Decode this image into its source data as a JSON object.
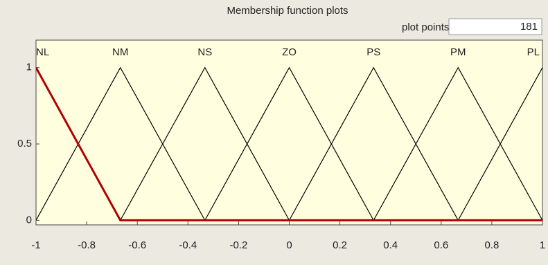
{
  "plot_points": {
    "label": "plot points:",
    "value": 181
  },
  "chart_data": {
    "type": "line",
    "title": "Membership function plots",
    "xlim": [
      -1,
      1
    ],
    "ylim": [
      -0.03,
      1.18
    ],
    "xticks": [
      -1,
      -0.8,
      -0.6,
      -0.4,
      -0.2,
      0,
      0.2,
      0.4,
      0.6,
      0.8,
      1
    ],
    "yticks": [
      0,
      0.5,
      1
    ],
    "series": [
      {
        "name": "NL",
        "color": "#b00000",
        "x": [
          -1,
          -0.667,
          1
        ],
        "values": [
          1,
          0,
          0
        ]
      },
      {
        "name": "NM",
        "color": "#000000",
        "x": [
          -1,
          -0.667,
          -0.333
        ],
        "values": [
          0,
          1,
          0
        ]
      },
      {
        "name": "NS",
        "color": "#000000",
        "x": [
          -0.667,
          -0.333,
          0
        ],
        "values": [
          0,
          1,
          0
        ]
      },
      {
        "name": "ZO",
        "color": "#000000",
        "x": [
          -0.333,
          0,
          0.333
        ],
        "values": [
          0,
          1,
          0
        ]
      },
      {
        "name": "PS",
        "color": "#000000",
        "x": [
          0,
          0.333,
          0.667
        ],
        "values": [
          0,
          1,
          0
        ]
      },
      {
        "name": "PM",
        "color": "#000000",
        "x": [
          0.333,
          0.667,
          1
        ],
        "values": [
          0,
          1,
          0
        ]
      },
      {
        "name": "PL",
        "color": "#000000",
        "x": [
          0.667,
          1,
          1.333
        ],
        "values": [
          0,
          1,
          0
        ]
      }
    ]
  }
}
